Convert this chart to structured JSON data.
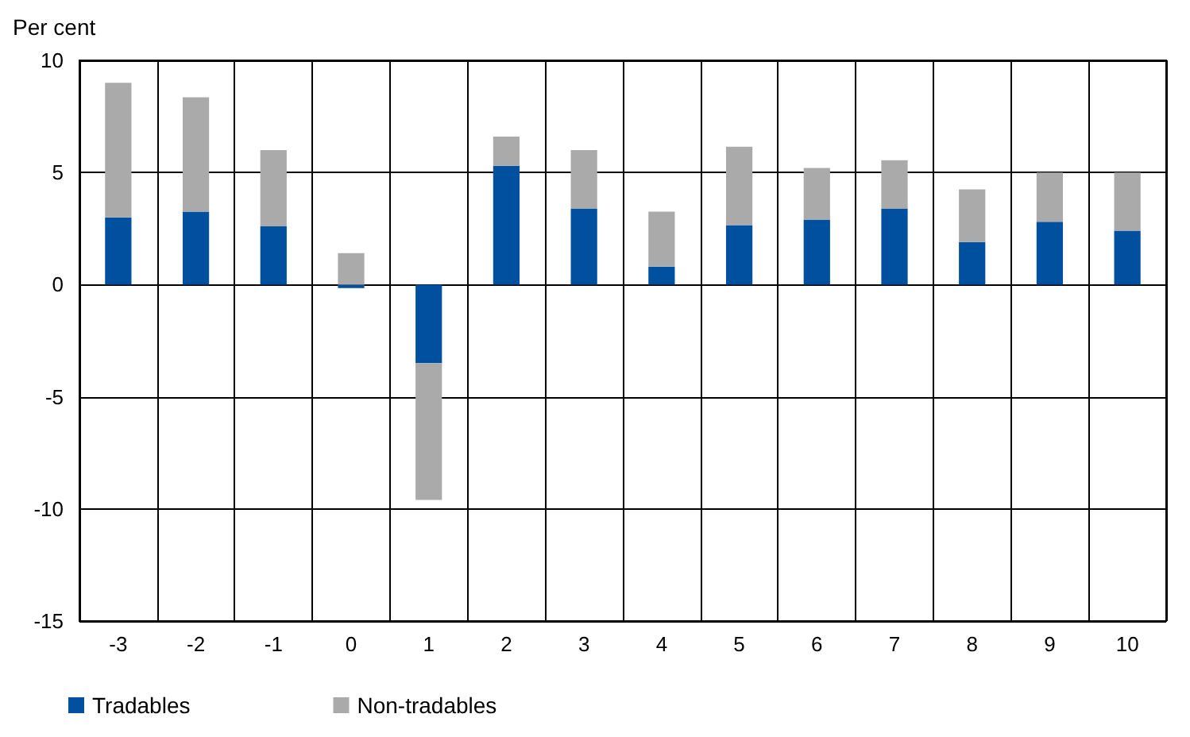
{
  "chart_data": {
    "type": "bar",
    "ylabel": "Per cent",
    "categories": [
      "-3",
      "-2",
      "-1",
      "0",
      "1",
      "2",
      "3",
      "4",
      "5",
      "6",
      "7",
      "8",
      "9",
      "10"
    ],
    "stacked": true,
    "series": [
      {
        "name": "Tradables",
        "color": "#0050a0",
        "values": [
          3.0,
          3.25,
          2.6,
          -0.15,
          -3.5,
          5.3,
          3.4,
          0.8,
          2.65,
          2.9,
          3.4,
          1.9,
          2.8,
          2.4
        ]
      },
      {
        "name": "Non-tradables",
        "color": "#aaaaaa",
        "values": [
          6.0,
          5.1,
          3.4,
          1.4,
          -6.1,
          1.3,
          2.6,
          2.45,
          3.5,
          2.3,
          2.15,
          2.35,
          2.2,
          2.6
        ]
      }
    ],
    "ylim": [
      -15,
      10
    ],
    "yticks": [
      -15,
      -10,
      -5,
      0,
      5,
      10
    ],
    "grid": true,
    "legend": "bottom left"
  }
}
